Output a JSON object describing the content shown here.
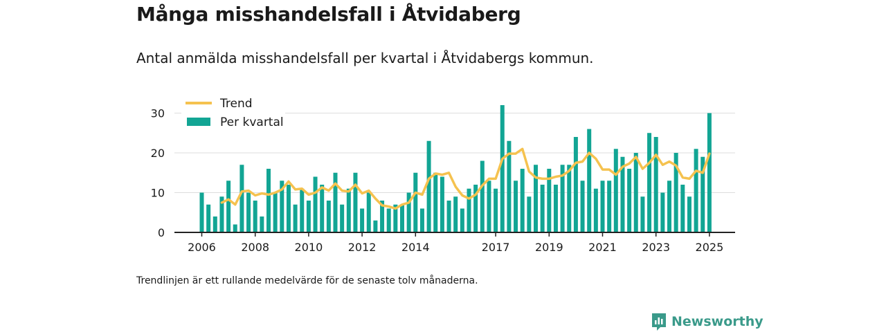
{
  "header": {
    "title": "Många misshandelsfall i Åtvidaberg",
    "subtitle": "Antal anmälda misshandelsfall per kvartal i Åtvidabergs kommun."
  },
  "footer": {
    "note": "Trendlinjen är ett rullande medelvärde för de senaste tolv månaderna.",
    "brand": "Newsworthy"
  },
  "colors": {
    "bar": "#12a594",
    "trend": "#f5c24f",
    "axis": "#222222",
    "grid": "#dddddd",
    "brand": "#3a9a8a"
  },
  "chart_data": {
    "type": "bar",
    "title": "",
    "xlabel": "",
    "ylabel": "",
    "ylim": [
      0,
      33
    ],
    "y_ticks": [
      0,
      10,
      20,
      30
    ],
    "x_tick_labels": [
      "2006",
      "2008",
      "2010",
      "2012",
      "2014",
      "2017",
      "2019",
      "2021",
      "2023",
      "2025"
    ],
    "legend": {
      "placement": "top-left",
      "items": [
        "Trend",
        "Per kvartal"
      ]
    },
    "grid": true,
    "categories": [
      "2006 K1",
      "2006 K2",
      "2006 K3",
      "2006 K4",
      "2007 K1",
      "2007 K2",
      "2007 K3",
      "2007 K4",
      "2008 K1",
      "2008 K2",
      "2008 K3",
      "2008 K4",
      "2009 K1",
      "2009 K2",
      "2009 K3",
      "2009 K4",
      "2010 K1",
      "2010 K2",
      "2010 K3",
      "2010 K4",
      "2011 K1",
      "2011 K2",
      "2011 K3",
      "2011 K4",
      "2012 K1",
      "2012 K2",
      "2012 K3",
      "2012 K4",
      "2013 K1",
      "2013 K2",
      "2013 K3",
      "2013 K4",
      "2014 K1",
      "2014 K2",
      "2014 K3",
      "2014 K4",
      "2015 K1",
      "2015 K2",
      "2015 K3",
      "2015 K4",
      "2016 K1",
      "2016 K2",
      "2016 K3",
      "2016 K4",
      "2017 K1",
      "2017 K2",
      "2017 K3",
      "2017 K4",
      "2018 K1",
      "2018 K2",
      "2018 K3",
      "2018 K4",
      "2019 K1",
      "2019 K2",
      "2019 K3",
      "2019 K4",
      "2020 K1",
      "2020 K2",
      "2020 K3",
      "2020 K4",
      "2021 K1",
      "2021 K2",
      "2021 K3",
      "2021 K4",
      "2022 K1",
      "2022 K2",
      "2022 K3",
      "2022 K4",
      "2023 K1",
      "2023 K2",
      "2023 K3",
      "2023 K4",
      "2024 K1",
      "2024 K2",
      "2024 K3",
      "2024 K4",
      "2025 K1"
    ],
    "series": [
      {
        "name": "Per kvartal",
        "type": "bar",
        "values": [
          10,
          7,
          4,
          9,
          13,
          2,
          17,
          10,
          8,
          4,
          16,
          10,
          13,
          12,
          7,
          11,
          8,
          14,
          12,
          8,
          15,
          7,
          11,
          15,
          6,
          10,
          3,
          8,
          6,
          7,
          7,
          10,
          15,
          6,
          23,
          15,
          14,
          8,
          9,
          6,
          11,
          12,
          18,
          13,
          11,
          32,
          23,
          13,
          16,
          9,
          17,
          12,
          16,
          12,
          17,
          17,
          24,
          13,
          26,
          11,
          13,
          13,
          21,
          19,
          16,
          20,
          9,
          25,
          24,
          10,
          13,
          20,
          12,
          9,
          21,
          19,
          30
        ]
      },
      {
        "name": "Trend",
        "type": "line",
        "values": [
          null,
          null,
          null,
          7.5,
          8.3,
          7.0,
          10.3,
          10.5,
          9.3,
          9.8,
          9.5,
          10.0,
          10.8,
          12.8,
          10.8,
          11.0,
          9.5,
          10.0,
          11.3,
          10.5,
          12.3,
          10.5,
          10.3,
          12.0,
          9.8,
          10.5,
          8.5,
          6.8,
          6.5,
          6.0,
          7.0,
          7.5,
          10.0,
          9.5,
          13.5,
          14.8,
          14.5,
          15.0,
          11.5,
          9.3,
          8.5,
          9.5,
          11.8,
          13.5,
          13.5,
          18.5,
          19.8,
          19.8,
          21.0,
          15.3,
          13.8,
          13.5,
          13.5,
          14.0,
          14.3,
          15.5,
          17.5,
          17.8,
          20.0,
          18.5,
          15.8,
          15.8,
          14.5,
          16.5,
          17.3,
          19.0,
          16.0,
          17.5,
          19.5,
          17.0,
          17.8,
          16.8,
          13.8,
          13.5,
          15.5,
          15.0,
          19.8
        ]
      }
    ]
  }
}
